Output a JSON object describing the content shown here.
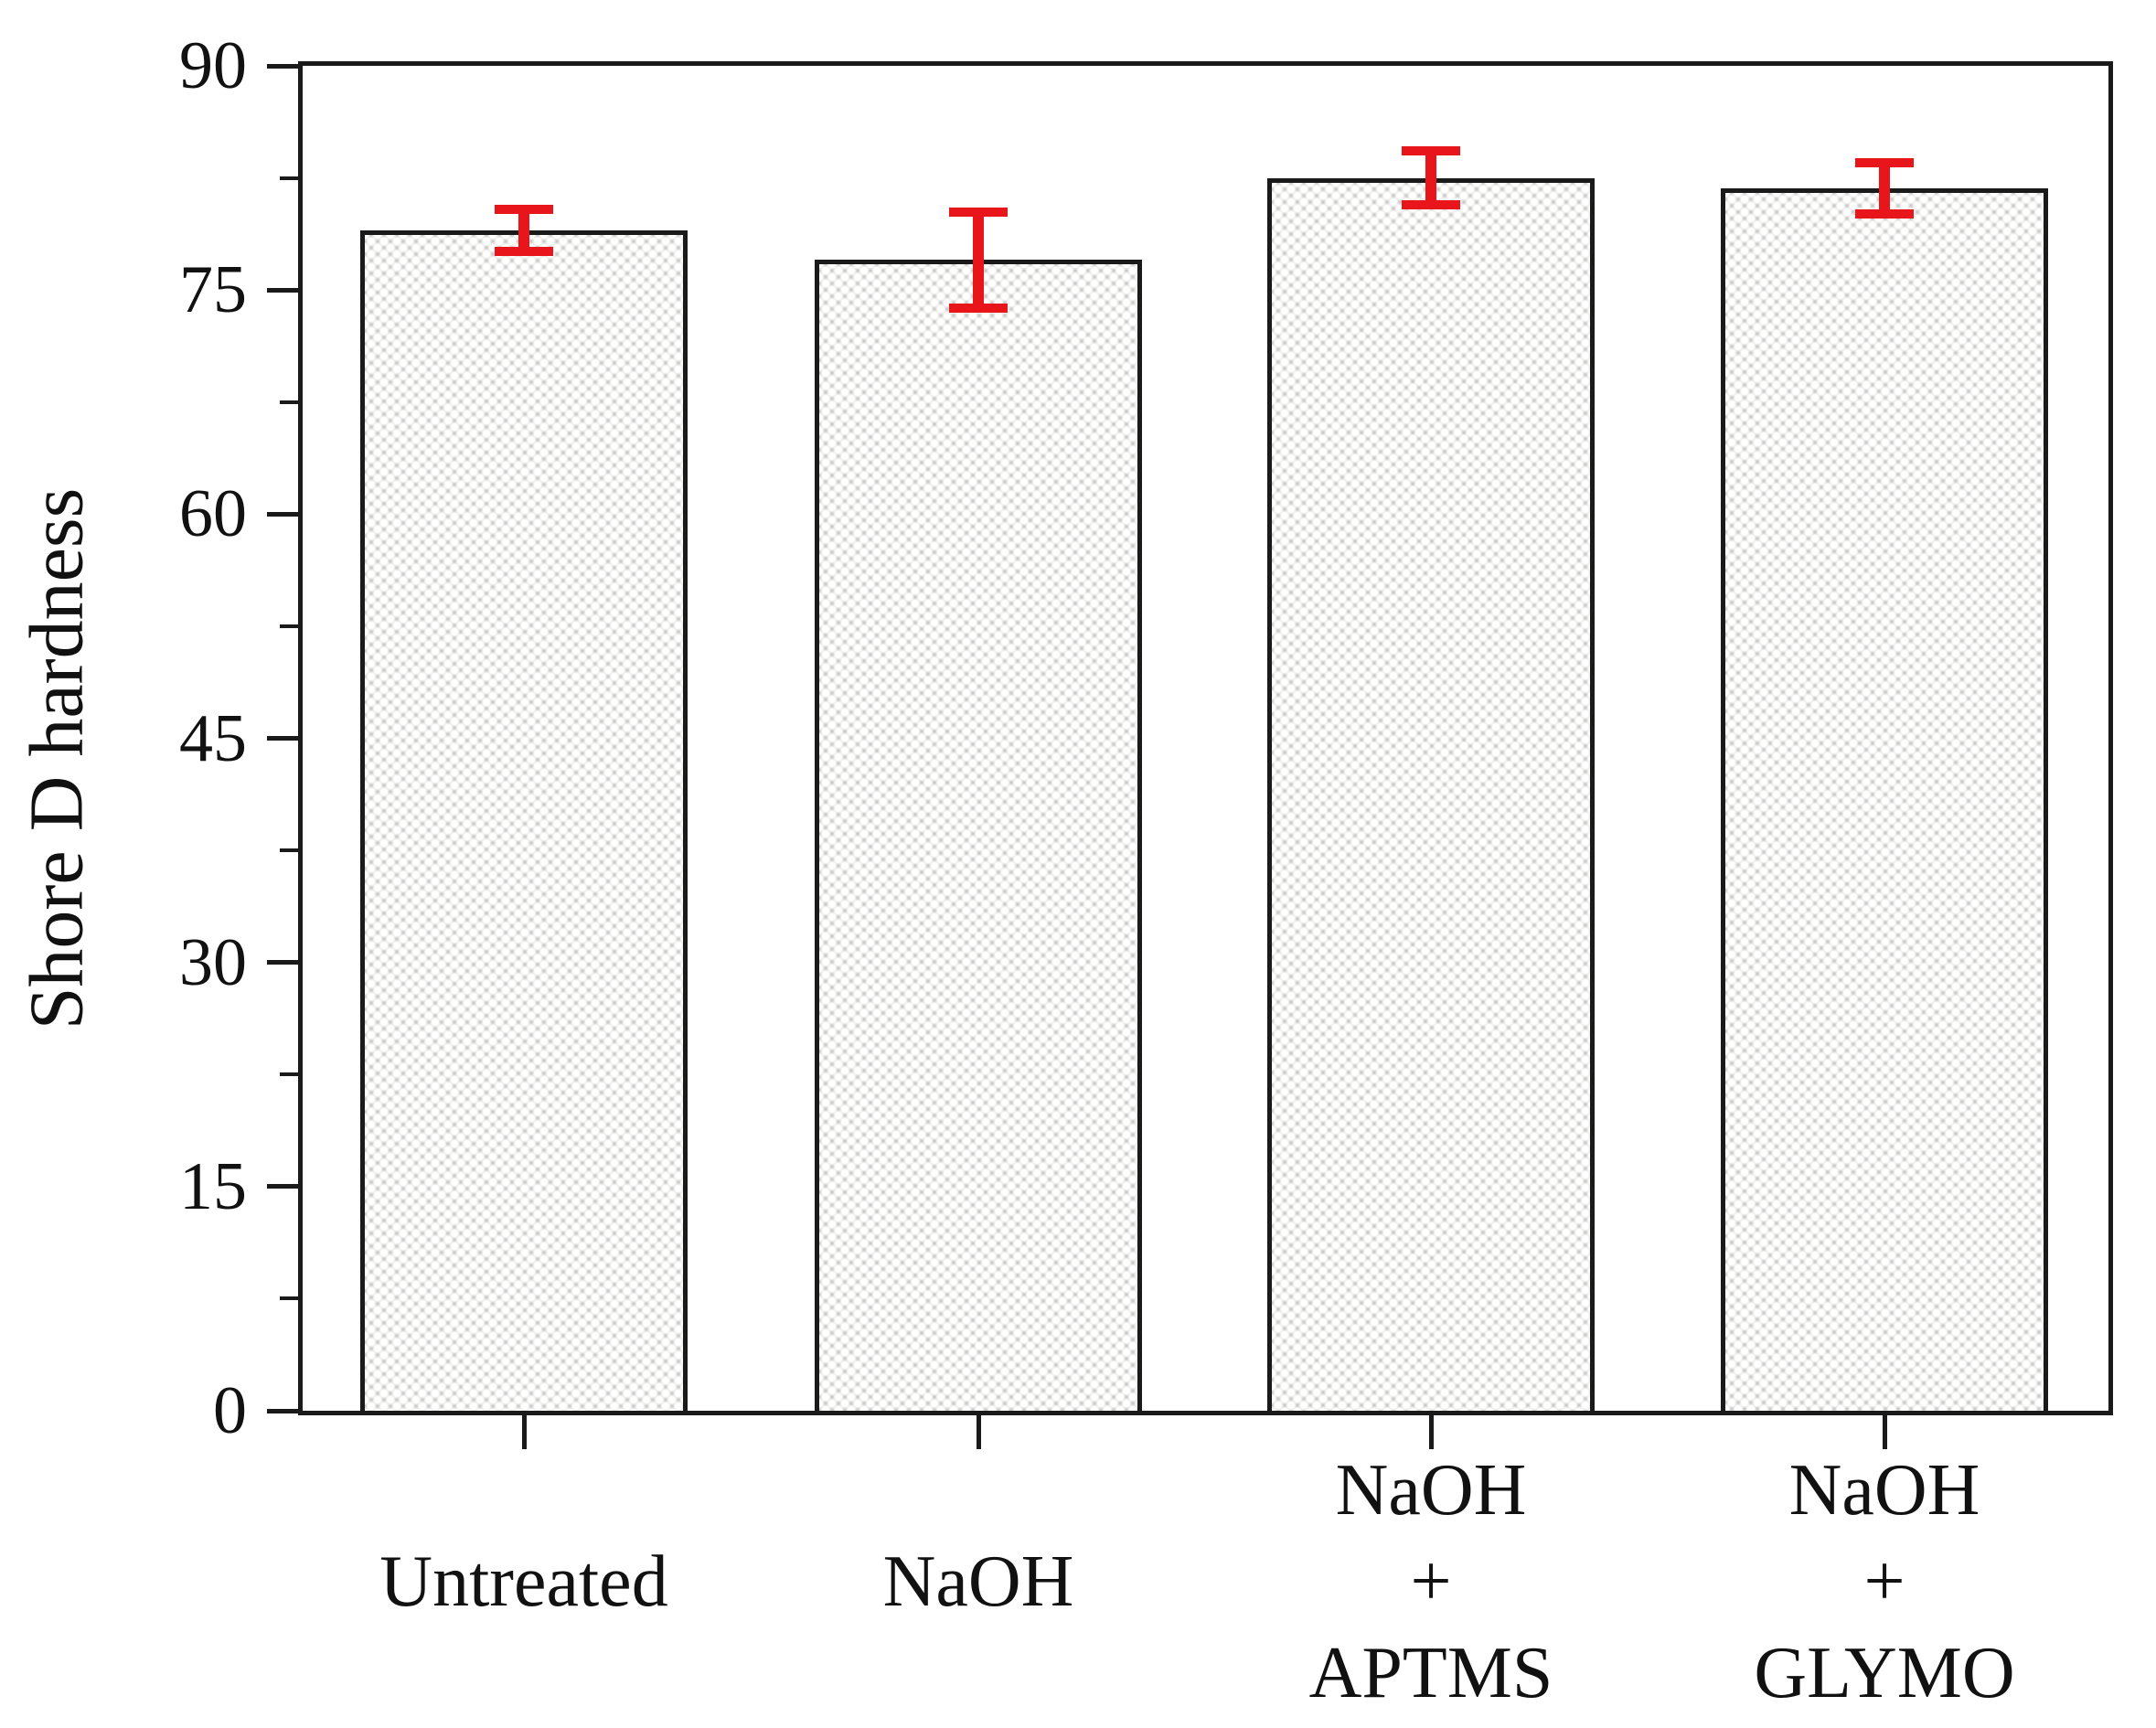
{
  "chart_data": {
    "type": "bar",
    "title": "",
    "xlabel": "",
    "ylabel": "Shore D hardness",
    "ylim": [
      0,
      90
    ],
    "yticks": [
      0,
      15,
      30,
      45,
      60,
      75,
      90
    ],
    "minor_yticks": [
      7.5,
      22.5,
      37.5,
      52.5,
      67.5,
      82.5
    ],
    "grid": false,
    "legend": "none",
    "categories": [
      "Untreated",
      "NaOH",
      "NaOH + APTMS",
      "NaOH + GLYMO"
    ],
    "category_label_lines": [
      [
        "Untreated"
      ],
      [
        "NaOH"
      ],
      [
        "NaOH",
        "+",
        "APTMS"
      ],
      [
        "NaOH",
        "+",
        "GLYMO"
      ]
    ],
    "series": [
      {
        "name": "Shore D hardness",
        "values": [
          79.0,
          77.0,
          82.5,
          81.8
        ],
        "errors": [
          1.7,
          3.5,
          2.1,
          2.0
        ]
      }
    ],
    "colors": {
      "bar_fill": "#c7c6c4",
      "bar_pattern_dot": "#ffffff",
      "bar_border": "#1a1a1a",
      "error_bar": "#e8151b",
      "axis": "#1a1a1a",
      "text": "#111111",
      "background": "#ffffff"
    }
  }
}
